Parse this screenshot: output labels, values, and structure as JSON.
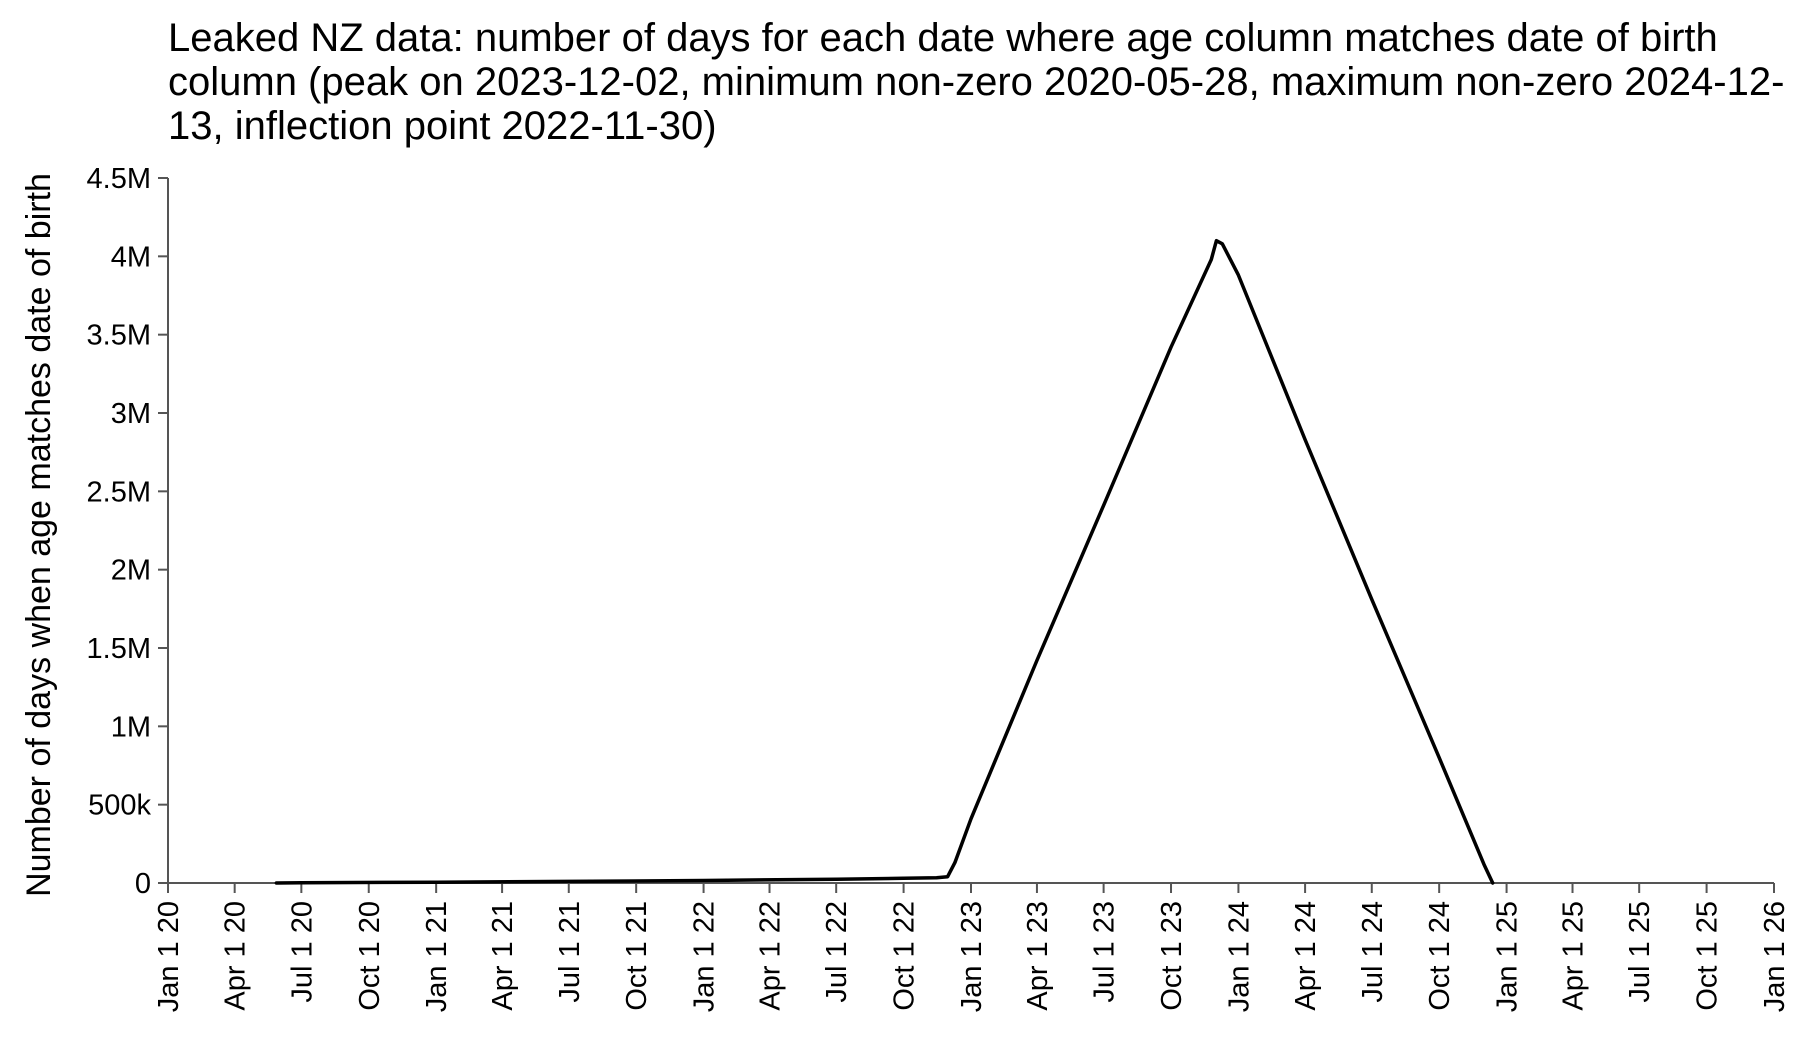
{
  "chart_data": {
    "type": "line",
    "title": "Leaked NZ data: number of days for each date where age column matches date of birth column (peak on 2023-12-02, minimum non-zero 2020-05-28, maximum non-zero 2024-12-13, inflection point 2022-11-30)",
    "xlabel": "",
    "ylabel": "Number of days when age matches date of birth",
    "ylim": [
      0,
      4500000
    ],
    "xlim": [
      "2020-01-01",
      "2026-01-01"
    ],
    "grid": false,
    "legend": "none",
    "line_color": "#000000",
    "y_ticks": [
      {
        "value": 0,
        "label": "0"
      },
      {
        "value": 500000,
        "label": "500k"
      },
      {
        "value": 1000000,
        "label": "1M"
      },
      {
        "value": 1500000,
        "label": "1.5M"
      },
      {
        "value": 2000000,
        "label": "2M"
      },
      {
        "value": 2500000,
        "label": "2.5M"
      },
      {
        "value": 3000000,
        "label": "3M"
      },
      {
        "value": 3500000,
        "label": "3.5M"
      },
      {
        "value": 4000000,
        "label": "4M"
      },
      {
        "value": 4500000,
        "label": "4.5M"
      }
    ],
    "x_ticks": [
      {
        "value": "2020-01-01",
        "label": "Jan 1 20"
      },
      {
        "value": "2020-04-01",
        "label": "Apr 1 20"
      },
      {
        "value": "2020-07-01",
        "label": "Jul 1 20"
      },
      {
        "value": "2020-10-01",
        "label": "Oct 1 20"
      },
      {
        "value": "2021-01-01",
        "label": "Jan 1 21"
      },
      {
        "value": "2021-04-01",
        "label": "Apr 1 21"
      },
      {
        "value": "2021-07-01",
        "label": "Jul 1 21"
      },
      {
        "value": "2021-10-01",
        "label": "Oct 1 21"
      },
      {
        "value": "2022-01-01",
        "label": "Jan 1 22"
      },
      {
        "value": "2022-04-01",
        "label": "Apr 1 22"
      },
      {
        "value": "2022-07-01",
        "label": "Jul 1 22"
      },
      {
        "value": "2022-10-01",
        "label": "Oct 1 22"
      },
      {
        "value": "2023-01-01",
        "label": "Jan 1 23"
      },
      {
        "value": "2023-04-01",
        "label": "Apr 1 23"
      },
      {
        "value": "2023-07-01",
        "label": "Jul 1 23"
      },
      {
        "value": "2023-10-01",
        "label": "Oct 1 23"
      },
      {
        "value": "2024-01-01",
        "label": "Jan 1 24"
      },
      {
        "value": "2024-04-01",
        "label": "Apr 1 24"
      },
      {
        "value": "2024-07-01",
        "label": "Jul 1 24"
      },
      {
        "value": "2024-10-01",
        "label": "Oct 1 24"
      },
      {
        "value": "2025-01-01",
        "label": "Jan 1 25"
      },
      {
        "value": "2025-04-01",
        "label": "Apr 1 25"
      },
      {
        "value": "2025-07-01",
        "label": "Jul 1 25"
      },
      {
        "value": "2025-10-01",
        "label": "Oct 1 25"
      },
      {
        "value": "2026-01-01",
        "label": "Jan 1 26"
      }
    ],
    "series": [
      {
        "x": [
          "2020-05-28",
          "2020-07-01",
          "2021-01-01",
          "2021-07-01",
          "2022-01-01",
          "2022-07-01",
          "2022-10-01",
          "2022-11-15",
          "2022-11-30",
          "2022-12-10",
          "2023-01-01",
          "2023-04-01",
          "2023-07-01",
          "2023-10-01",
          "2023-11-25",
          "2023-12-02",
          "2023-12-10",
          "2024-01-01",
          "2024-04-01",
          "2024-07-01",
          "2024-10-01",
          "2024-12-01",
          "2024-12-13"
        ],
        "y": [
          0,
          2000,
          5000,
          10000,
          16000,
          24000,
          30000,
          34000,
          40000,
          130000,
          410000,
          1420000,
          2410000,
          3420000,
          3980000,
          4100000,
          4080000,
          3880000,
          2830000,
          1810000,
          800000,
          120000,
          0
        ]
      }
    ]
  }
}
